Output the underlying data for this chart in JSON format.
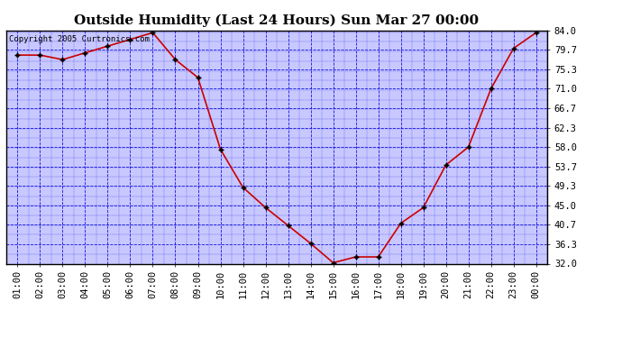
{
  "title": "Outside Humidity (Last 24 Hours) Sun Mar 27 00:00",
  "copyright": "Copyright 2005 Curtronics.com",
  "x_labels": [
    "01:00",
    "02:00",
    "03:00",
    "04:00",
    "05:00",
    "06:00",
    "07:00",
    "08:00",
    "09:00",
    "10:00",
    "11:00",
    "12:00",
    "13:00",
    "14:00",
    "15:00",
    "16:00",
    "17:00",
    "18:00",
    "19:00",
    "20:00",
    "21:00",
    "22:00",
    "23:00",
    "00:00"
  ],
  "x_values": [
    1,
    2,
    3,
    4,
    5,
    6,
    7,
    8,
    9,
    10,
    11,
    12,
    13,
    14,
    15,
    16,
    17,
    18,
    19,
    20,
    21,
    22,
    23,
    24
  ],
  "y_values": [
    78.5,
    78.5,
    77.5,
    79.0,
    80.5,
    82.0,
    83.5,
    77.5,
    73.5,
    57.5,
    49.0,
    44.5,
    40.5,
    36.5,
    32.2,
    33.5,
    33.5,
    41.0,
    44.5,
    54.0,
    58.0,
    71.0,
    80.0,
    83.5
  ],
  "y_ticks": [
    32.0,
    36.3,
    40.7,
    45.0,
    49.3,
    53.7,
    58.0,
    62.3,
    66.7,
    71.0,
    75.3,
    79.7,
    84.0
  ],
  "y_tick_labels": [
    "32.0",
    "36.3",
    "40.7",
    "45.0",
    "49.3",
    "53.7",
    "58.0",
    "62.3",
    "66.7",
    "71.0",
    "75.3",
    "79.7",
    "84.0"
  ],
  "y_min": 32.0,
  "y_max": 84.0,
  "line_color": "#cc0000",
  "fig_bg_color": "#ffffff",
  "plot_bg_color": "#c8c8ff",
  "grid_color": "#0000dd",
  "title_fontsize": 11,
  "copyright_fontsize": 6.5,
  "tick_fontsize": 7.5
}
